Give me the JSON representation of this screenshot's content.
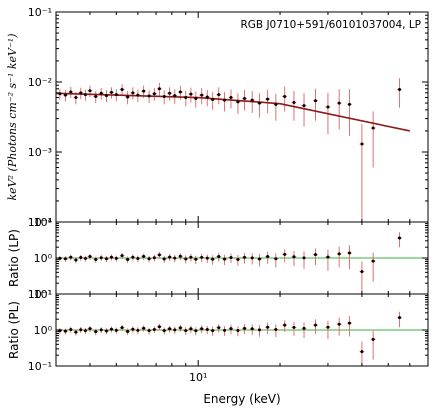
{
  "chart_data": [
    {
      "type": "scatter",
      "panel": "spectrum",
      "title": "",
      "annotation": "RGB J0710+591/60101037004, LP",
      "ylabel": "keV² (Photons cm⁻² s⁻¹ keV⁻¹)",
      "xscale": "log",
      "yscale": "log",
      "xlim": [
        3.0,
        70.0
      ],
      "ylim": [
        0.0001,
        0.1
      ],
      "ytick_labels": [
        "10⁻¹",
        "10⁻²",
        "10⁻³",
        "10⁻⁴"
      ],
      "colors": {
        "data": "#000000",
        "errors": "#e07070",
        "model": "#8b1a1a"
      },
      "series": [
        {
          "name": "",
          "x": [
            3.1,
            3.25,
            3.4,
            3.55,
            3.7,
            3.85,
            4.0,
            4.2,
            4.4,
            4.6,
            4.8,
            5.0,
            5.25,
            5.5,
            5.75,
            6.0,
            6.3,
            6.6,
            6.9,
            7.2,
            7.5,
            7.85,
            8.2,
            8.6,
            9.0,
            9.4,
            9.8,
            10.3,
            10.8,
            11.3,
            11.9,
            12.5,
            13.2,
            14.0,
            14.8,
            15.8,
            16.8,
            18.0,
            19.3,
            20.8,
            22.5,
            24.5,
            27.0,
            30.0,
            33.0,
            36.0,
            40.0,
            44.0,
            55.0
          ],
          "y": [
            0.0068,
            0.0065,
            0.0072,
            0.006,
            0.007,
            0.0066,
            0.0075,
            0.0062,
            0.0069,
            0.0064,
            0.0071,
            0.0066,
            0.0078,
            0.0061,
            0.007,
            0.0065,
            0.0074,
            0.0063,
            0.0068,
            0.008,
            0.0062,
            0.0069,
            0.0064,
            0.0072,
            0.006,
            0.0067,
            0.0058,
            0.0065,
            0.0061,
            0.0056,
            0.0066,
            0.0055,
            0.006,
            0.0052,
            0.0058,
            0.0055,
            0.005,
            0.0057,
            0.0048,
            0.0062,
            0.0051,
            0.0046,
            0.0054,
            0.0044,
            0.005,
            0.0048,
            0.0013,
            0.0022,
            0.0078
          ],
          "yerr": [
            0.0012,
            0.0012,
            0.0013,
            0.0012,
            0.0013,
            0.0012,
            0.0014,
            0.0012,
            0.0013,
            0.0012,
            0.0013,
            0.0013,
            0.0015,
            0.0013,
            0.0014,
            0.0013,
            0.0015,
            0.0013,
            0.0014,
            0.0017,
            0.0014,
            0.0015,
            0.0015,
            0.0016,
            0.0015,
            0.0016,
            0.0015,
            0.0017,
            0.0016,
            0.0016,
            0.0018,
            0.0017,
            0.0018,
            0.0017,
            0.0019,
            0.0019,
            0.0019,
            0.0021,
            0.002,
            0.0024,
            0.0023,
            0.0023,
            0.0026,
            0.0026,
            0.0029,
            0.0031,
            0.0012,
            0.0016,
            0.0035
          ]
        }
      ],
      "model": {
        "x": [
          3.0,
          10.0,
          20.0,
          60.0
        ],
        "y": [
          0.0069,
          0.006,
          0.0049,
          0.002
        ]
      }
    },
    {
      "type": "scatter",
      "panel": "ratio_lp",
      "ylabel": "Ratio (LP)",
      "xscale": "log",
      "yscale": "log",
      "xlim": [
        3.0,
        70.0
      ],
      "ylim": [
        0.1,
        10
      ],
      "ytick_labels": [
        "10¹",
        "10⁰",
        "10⁻¹"
      ],
      "reference_line": 1.0,
      "colors": {
        "data": "#000000",
        "errors": "#e07070",
        "reference": "#3cb043"
      },
      "series": [
        {
          "name": "",
          "x": [
            3.1,
            3.25,
            3.4,
            3.55,
            3.7,
            3.85,
            4.0,
            4.2,
            4.4,
            4.6,
            4.8,
            5.0,
            5.25,
            5.5,
            5.75,
            6.0,
            6.3,
            6.6,
            6.9,
            7.2,
            7.5,
            7.85,
            8.2,
            8.6,
            9.0,
            9.4,
            9.8,
            10.3,
            10.8,
            11.3,
            11.9,
            12.5,
            13.2,
            14.0,
            14.8,
            15.8,
            16.8,
            18.0,
            19.3,
            20.8,
            22.5,
            24.5,
            27.0,
            30.0,
            33.0,
            36.0,
            40.0,
            44.0,
            55.0
          ],
          "y": [
            0.98,
            0.95,
            1.05,
            0.88,
            1.03,
            0.97,
            1.1,
            0.91,
            1.02,
            0.95,
            1.05,
            0.98,
            1.16,
            0.91,
            1.05,
            0.97,
            1.11,
            0.95,
            1.02,
            1.22,
            0.94,
            1.06,
            0.99,
            1.12,
            0.94,
            1.05,
            0.92,
            1.04,
            0.99,
            0.92,
            1.1,
            0.93,
            1.03,
            0.91,
            1.04,
            1.01,
            0.94,
            1.1,
            0.95,
            1.26,
            1.08,
            1.01,
            1.24,
            1.07,
            1.3,
            1.38,
            0.42,
            0.82,
            3.6
          ],
          "yerr": [
            0.17,
            0.17,
            0.19,
            0.17,
            0.19,
            0.18,
            0.2,
            0.18,
            0.19,
            0.18,
            0.2,
            0.19,
            0.22,
            0.19,
            0.21,
            0.2,
            0.22,
            0.2,
            0.21,
            0.26,
            0.21,
            0.23,
            0.23,
            0.25,
            0.24,
            0.25,
            0.24,
            0.27,
            0.26,
            0.27,
            0.3,
            0.29,
            0.31,
            0.3,
            0.34,
            0.35,
            0.36,
            0.41,
            0.4,
            0.49,
            0.49,
            0.51,
            0.6,
            0.63,
            0.75,
            0.89,
            0.38,
            0.6,
            1.6
          ]
        }
      ]
    },
    {
      "type": "scatter",
      "panel": "ratio_pl",
      "ylabel": "Ratio (PL)",
      "xlabel": "Energy (keV)",
      "xscale": "log",
      "yscale": "log",
      "xlim": [
        3.0,
        70.0
      ],
      "ylim": [
        0.1,
        10
      ],
      "ytick_labels": [
        "10¹",
        "10⁰",
        "10⁻¹"
      ],
      "xtick_labels": [
        "10¹"
      ],
      "reference_line": 1.0,
      "colors": {
        "data": "#000000",
        "errors": "#e07070",
        "reference": "#3cb043"
      },
      "series": [
        {
          "name": "",
          "x": [
            3.1,
            3.25,
            3.4,
            3.55,
            3.7,
            3.85,
            4.0,
            4.2,
            4.4,
            4.6,
            4.8,
            5.0,
            5.25,
            5.5,
            5.75,
            6.0,
            6.3,
            6.6,
            6.9,
            7.2,
            7.5,
            7.85,
            8.2,
            8.6,
            9.0,
            9.4,
            9.8,
            10.3,
            10.8,
            11.3,
            11.9,
            12.5,
            13.2,
            14.0,
            14.8,
            15.8,
            16.8,
            18.0,
            19.3,
            20.8,
            22.5,
            24.5,
            27.0,
            30.0,
            33.0,
            36.0,
            40.0,
            44.0,
            55.0
          ],
          "y": [
            0.96,
            0.93,
            1.03,
            0.87,
            1.02,
            0.96,
            1.09,
            0.9,
            1.01,
            0.94,
            1.05,
            0.98,
            1.16,
            0.91,
            1.05,
            0.98,
            1.12,
            0.96,
            1.03,
            1.23,
            0.96,
            1.08,
            1.01,
            1.15,
            0.96,
            1.08,
            0.95,
            1.08,
            1.03,
            0.96,
            1.16,
            0.98,
            1.09,
            0.97,
            1.11,
            1.08,
            1.01,
            1.19,
            1.03,
            1.37,
            1.18,
            1.11,
            1.37,
            1.19,
            1.45,
            1.55,
            0.25,
            0.55,
            2.2
          ],
          "yerr": [
            0.17,
            0.17,
            0.19,
            0.17,
            0.19,
            0.18,
            0.2,
            0.18,
            0.19,
            0.18,
            0.2,
            0.19,
            0.22,
            0.19,
            0.21,
            0.2,
            0.22,
            0.2,
            0.21,
            0.26,
            0.21,
            0.23,
            0.23,
            0.25,
            0.24,
            0.25,
            0.24,
            0.27,
            0.26,
            0.27,
            0.3,
            0.29,
            0.31,
            0.3,
            0.34,
            0.35,
            0.36,
            0.41,
            0.4,
            0.49,
            0.49,
            0.51,
            0.6,
            0.63,
            0.75,
            0.89,
            0.23,
            0.4,
            1.0
          ]
        }
      ]
    }
  ]
}
